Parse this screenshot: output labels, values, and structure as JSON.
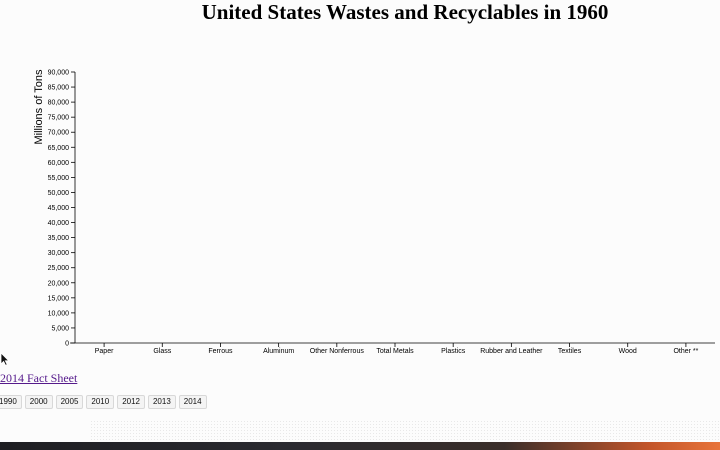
{
  "page": {
    "title": "United States Wastes and Recyclables in 1960",
    "fact_sheet_link": "2014 Fact Sheet",
    "year_buttons": [
      "1990",
      "2000",
      "2005",
      "2010",
      "2012",
      "2013",
      "2014"
    ]
  },
  "chart_data": {
    "type": "bar",
    "title": "United States Wastes and Recyclables in 1960",
    "xlabel": "",
    "ylabel": "Millions of Tons",
    "categories": [
      "Paper",
      "Glass",
      "Ferrous",
      "Aluminum",
      "Other Nonferrous",
      "Total Metals",
      "Plastics",
      "Rubber and Leather",
      "Textiles",
      "Wood",
      "Other **"
    ],
    "values": [
      0,
      0,
      0,
      0,
      0,
      0,
      0,
      0,
      0,
      0,
      0
    ],
    "yticks": [
      "0",
      "5,000",
      "10,000",
      "15,000",
      "20,000",
      "25,000",
      "30,000",
      "35,000",
      "40,000",
      "45,000",
      "50,000",
      "55,000",
      "60,000",
      "65,000",
      "70,000",
      "75,000",
      "80,000",
      "85,000",
      "90,000"
    ],
    "ylim": [
      0,
      90000
    ],
    "grid": false,
    "legend": "none"
  },
  "icons": {
    "cursor": "mouse-pointer-icon"
  }
}
